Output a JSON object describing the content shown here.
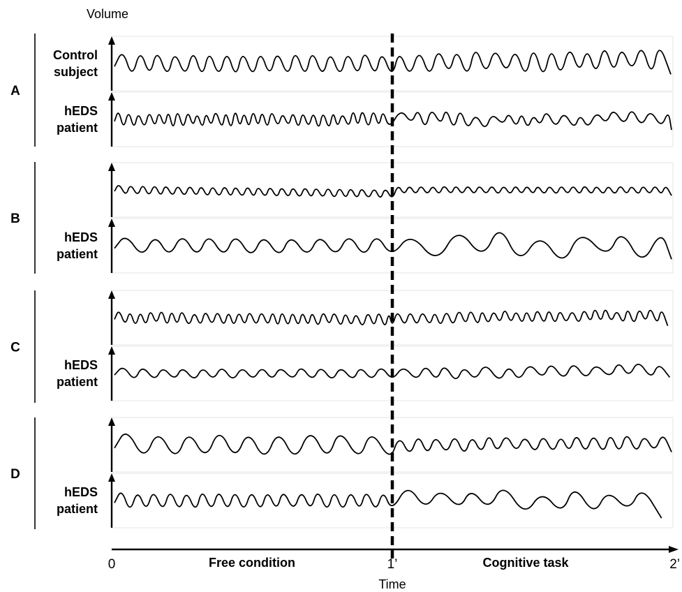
{
  "chart_data": {
    "type": "line",
    "title": "",
    "ylabel": "Volume",
    "xlabel": "Time",
    "x_ticks": [
      "0",
      "1’",
      "2’"
    ],
    "xlim": [
      0,
      2
    ],
    "x_unit": "min",
    "phase_boundary_x": 1,
    "phases": [
      {
        "name": "Free condition",
        "x_range": [
          0,
          1
        ]
      },
      {
        "name": "Cognitive task",
        "x_range": [
          1,
          2
        ]
      }
    ],
    "grid": false,
    "legend": "none",
    "groups": [
      {
        "letter": "A",
        "panels": [
          {
            "label": [
              "Control",
              "subject"
            ],
            "free": {
              "cycles": 16,
              "amplitude": 0.75,
              "irregularity": 0.1,
              "baseline": 0.0
            },
            "task": {
              "cycles": 15,
              "amplitude": 0.8,
              "irregularity": 0.25,
              "baseline": -0.2
            }
          },
          {
            "label": [
              "hEDS",
              "patient"
            ],
            "free": {
              "cycles": 28,
              "amplitude": 0.5,
              "irregularity": 0.3,
              "baseline": 0.0
            },
            "task": {
              "cycles": 18,
              "amplitude": 0.45,
              "irregularity": 0.6,
              "baseline": 0.0
            }
          }
        ]
      },
      {
        "letter": "B",
        "panels": [
          {
            "label": [
              "",
              ""
            ],
            "free": {
              "cycles": 24,
              "amplitude": 0.35,
              "irregularity": 0.05,
              "baseline": 0.2
            },
            "task": {
              "cycles": 24,
              "amplitude": 0.28,
              "irregularity": 0.08,
              "baseline": 0.0
            }
          },
          {
            "label": [
              "hEDS",
              "patient"
            ],
            "free": {
              "cycles": 10,
              "amplitude": 0.65,
              "irregularity": 0.08,
              "baseline": 0.0
            },
            "task": {
              "cycles": 7,
              "amplitude": 0.9,
              "irregularity": 0.4,
              "baseline": -0.1
            }
          }
        ]
      },
      {
        "letter": "C",
        "panels": [
          {
            "label": [
              "",
              ""
            ],
            "free": {
              "cycles": 26,
              "amplitude": 0.45,
              "irregularity": 0.2,
              "baseline": 0.1
            },
            "task": {
              "cycles": 24,
              "amplitude": 0.45,
              "irregularity": 0.25,
              "baseline": -0.1
            }
          },
          {
            "label": [
              "hEDS",
              "patient"
            ],
            "free": {
              "cycles": 14,
              "amplitude": 0.4,
              "irregularity": 0.12,
              "baseline": 0.0
            },
            "task": {
              "cycles": 13,
              "amplitude": 0.45,
              "irregularity": 0.3,
              "baseline": -0.2
            }
          }
        ]
      },
      {
        "letter": "D",
        "panels": [
          {
            "label": [
              "",
              ""
            ],
            "free": {
              "cycles": 9,
              "amplitude": 0.85,
              "irregularity": 0.1,
              "baseline": 0.0
            },
            "task": {
              "cycles": 16,
              "amplitude": 0.55,
              "irregularity": 0.2,
              "baseline": -0.1
            }
          },
          {
            "label": [
              "hEDS",
              "patient"
            ],
            "free": {
              "cycles": 17,
              "amplitude": 0.6,
              "irregularity": 0.1,
              "baseline": 0.0
            },
            "task": {
              "cycles": 8,
              "amplitude": 0.7,
              "irregularity": 0.4,
              "baseline": 0.0
            }
          }
        ]
      }
    ]
  }
}
